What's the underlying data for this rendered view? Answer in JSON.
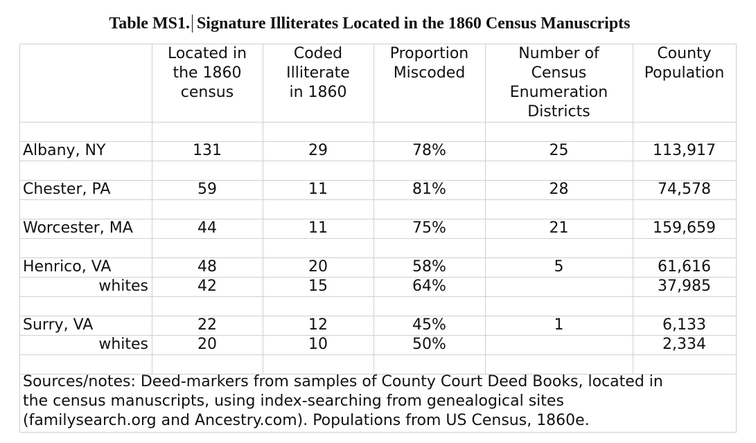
{
  "title": {
    "label": "Table MS1.",
    "text": "Signature Illiterates Located in the 1860 Census Manuscripts"
  },
  "table": {
    "header": [
      [
        "Located in",
        "the 1860",
        "census"
      ],
      [
        "Coded",
        "Illiterate",
        "in 1860"
      ],
      [
        "Proportion",
        "Miscoded"
      ],
      [
        "Number of",
        "Census",
        "Enumeration",
        "Districts"
      ],
      [
        "County",
        "Population"
      ]
    ],
    "groups": [
      [
        {
          "label": "Albany, NY",
          "cells": [
            "131",
            "29",
            "78%",
            "25",
            "113,917"
          ]
        }
      ],
      [
        {
          "label": "Chester, PA",
          "cells": [
            "59",
            "11",
            "81%",
            "28",
            "74,578"
          ]
        }
      ],
      [
        {
          "label": "Worcester, MA",
          "cells": [
            "44",
            "11",
            "75%",
            "21",
            "159,659"
          ]
        }
      ],
      [
        {
          "label": "Henrico, VA",
          "cells": [
            "48",
            "20",
            "58%",
            "5",
            "61,616"
          ]
        },
        {
          "label": "whites",
          "cells": [
            "42",
            "15",
            "64%",
            null,
            "37,985"
          ]
        }
      ],
      [
        {
          "label": "Surry, VA",
          "cells": [
            "22",
            "12",
            "45%",
            "1",
            "6,133"
          ]
        },
        {
          "label": "whites",
          "cells": [
            "20",
            "10",
            "50%",
            null,
            "2,334"
          ]
        }
      ]
    ],
    "notes": [
      "Sources/notes: Deed-markers from samples of County Court Deed Books, located in",
      "the census manuscripts, using index-searching from genealogical sites",
      "(familysearch.org and Ancestry.com). Populations from US Census, 1860e."
    ]
  }
}
